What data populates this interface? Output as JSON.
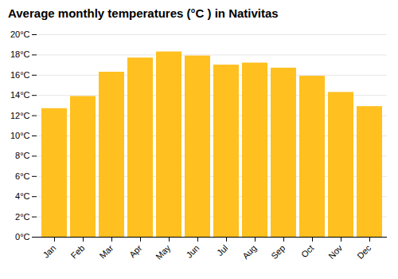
{
  "chart_data": {
    "type": "bar",
    "title": "Average monthly temperatures (°C ) in Nativitas",
    "categories": [
      "Jan",
      "Feb",
      "Mar",
      "Apr",
      "May",
      "Jun",
      "Jul",
      "Aug",
      "Sep",
      "Oct",
      "Nov",
      "Dec"
    ],
    "values": [
      12.7,
      13.9,
      16.3,
      17.7,
      18.3,
      17.9,
      17.0,
      17.2,
      16.7,
      15.9,
      14.3,
      12.9
    ],
    "color": "#FFC020",
    "ylim": [
      0,
      20
    ],
    "yticks": [
      {
        "value": 0,
        "label": "0°C"
      },
      {
        "value": 2,
        "label": "2°C"
      },
      {
        "value": 4,
        "label": "4°C"
      },
      {
        "value": 6,
        "label": "6°C"
      },
      {
        "value": 8,
        "label": "8°C"
      },
      {
        "value": 10,
        "label": "10°C"
      },
      {
        "value": 12,
        "label": "12°C"
      },
      {
        "value": 14,
        "label": "14°C"
      },
      {
        "value": 16,
        "label": "16°C"
      },
      {
        "value": 18,
        "label": "18°C"
      },
      {
        "value": 20,
        "label": "20°C"
      }
    ],
    "grid": true
  }
}
